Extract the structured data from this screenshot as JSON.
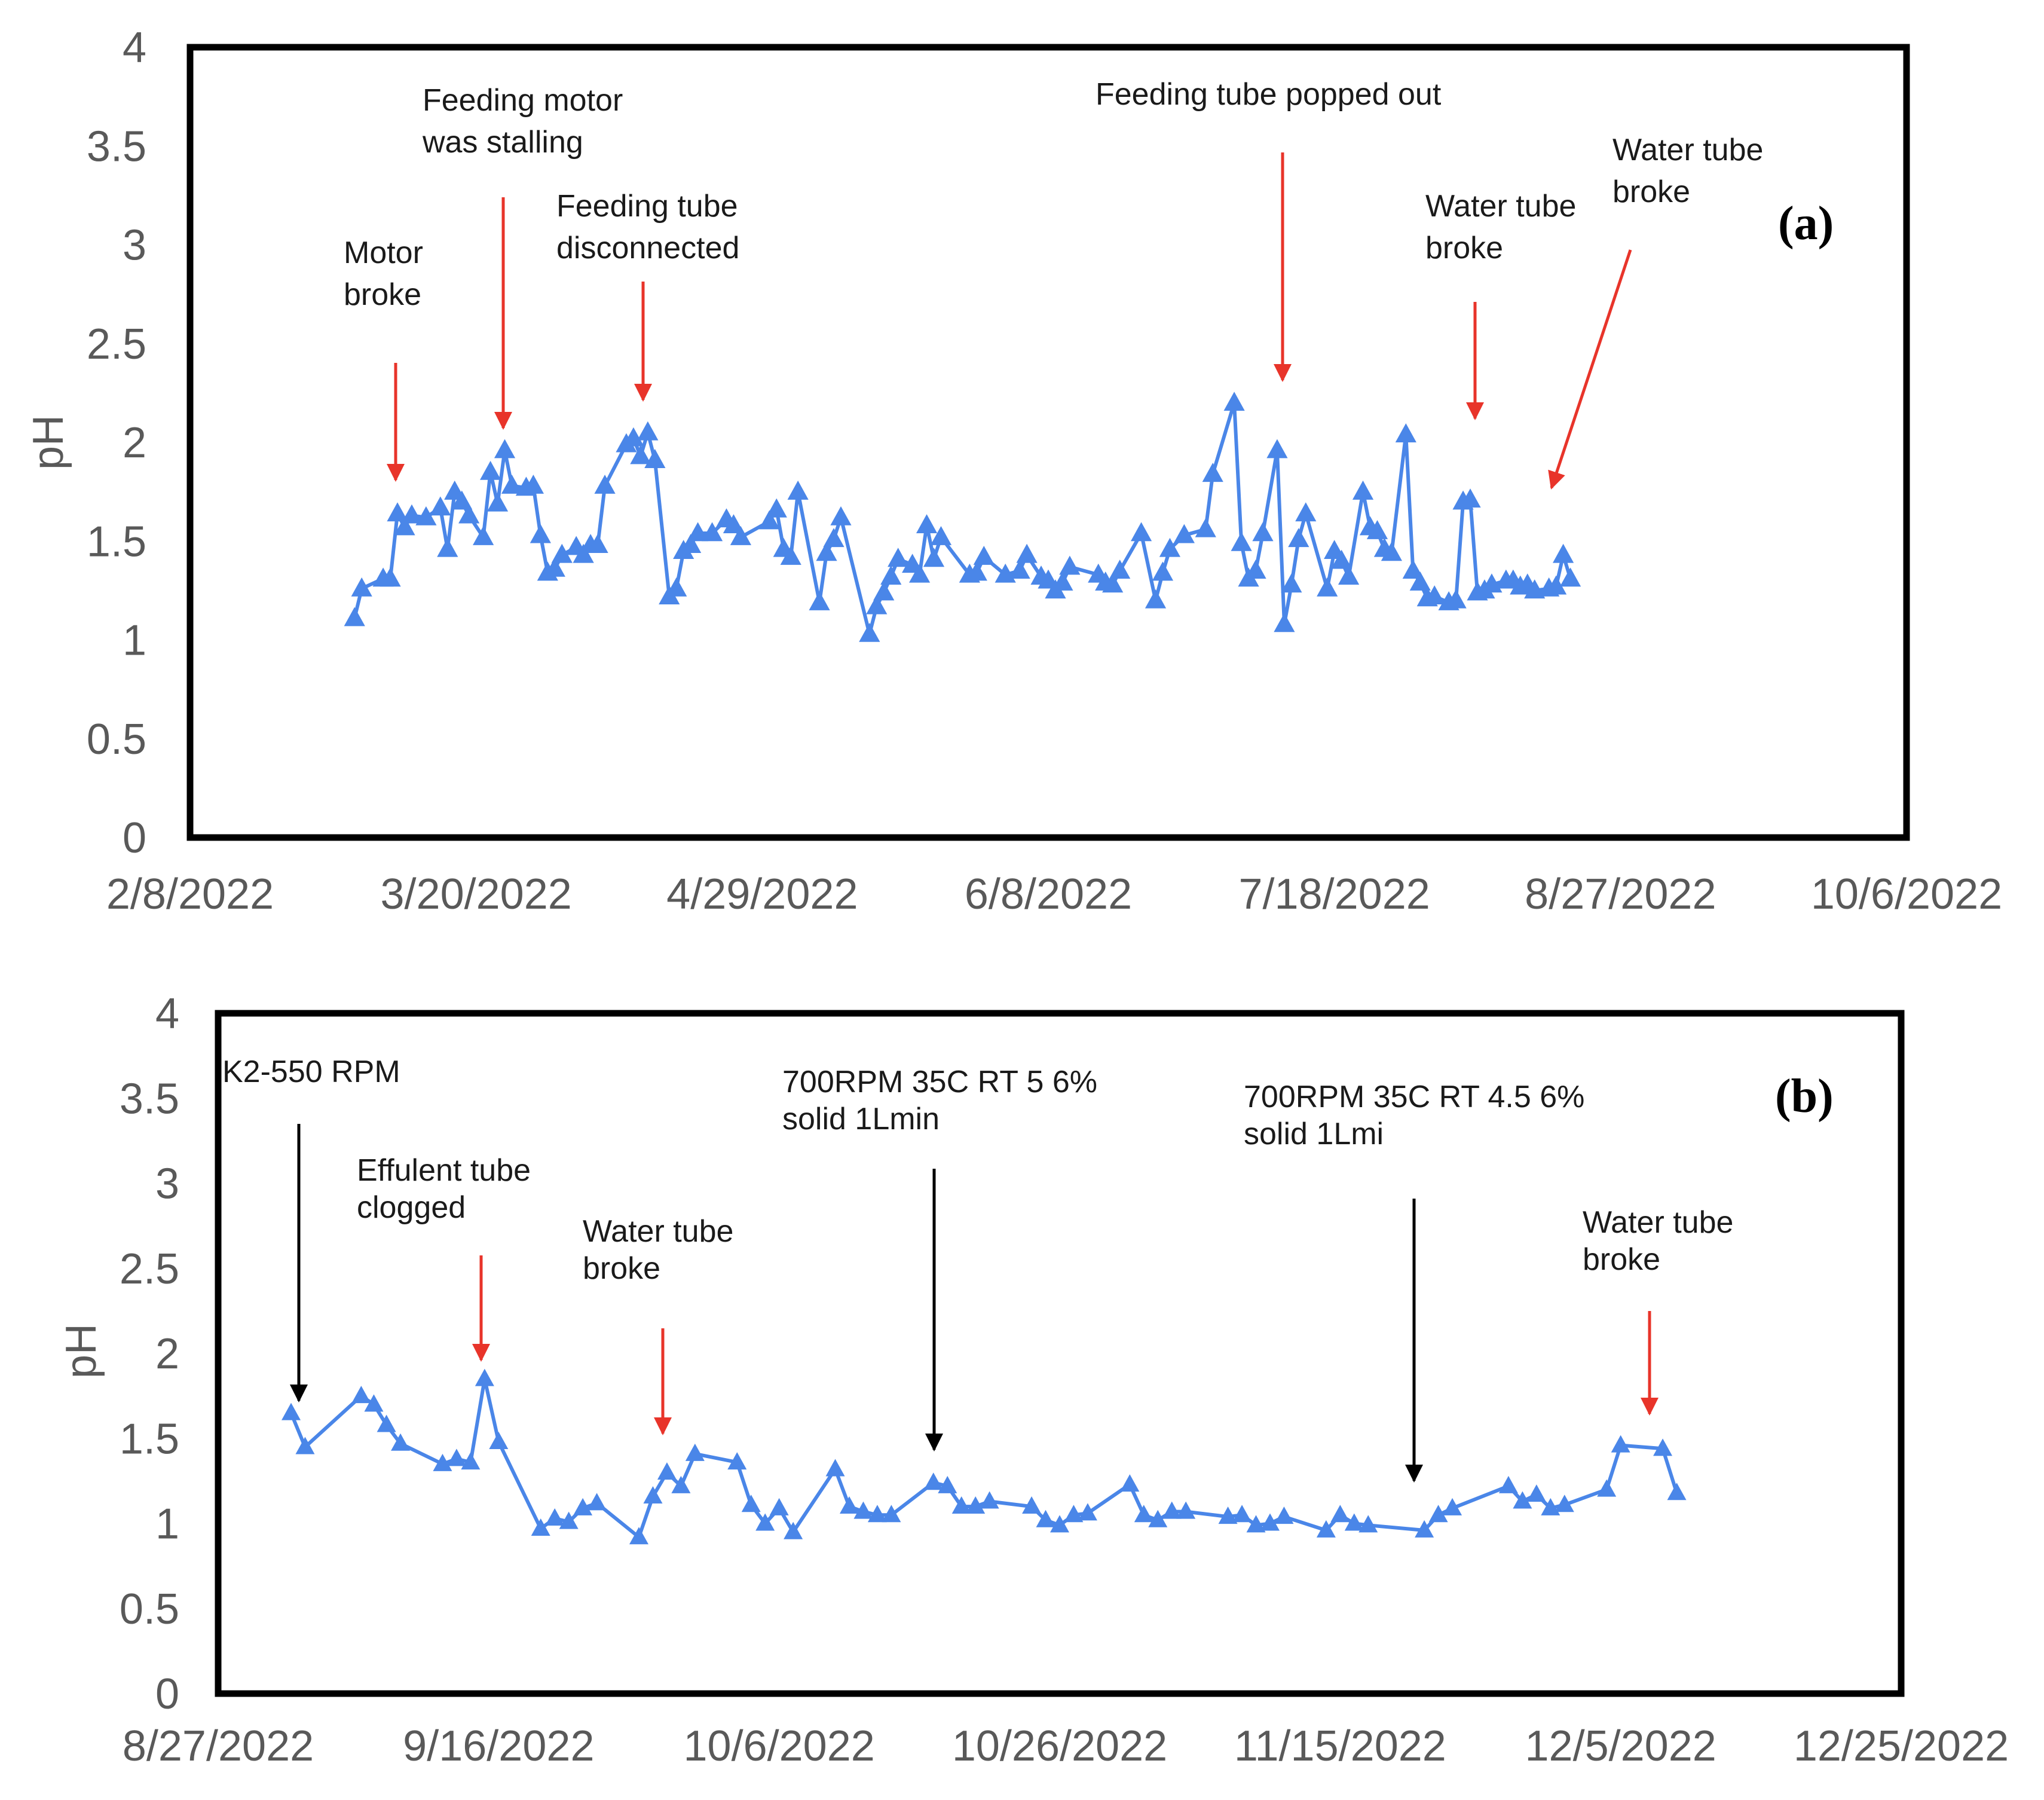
{
  "chart_data": [
    {
      "panel": "a",
      "type": "line",
      "panel_label": "(a)",
      "ylabel": "pH",
      "ylim": [
        0,
        4
      ],
      "yticks": [
        "0",
        "0.5",
        "1",
        "1.5",
        "2",
        "2.5",
        "3",
        "3.5",
        "4"
      ],
      "xlim": [
        0,
        240
      ],
      "xticks": [
        {
          "label": "2/8/2022",
          "day": 0
        },
        {
          "label": "3/20/2022",
          "day": 40
        },
        {
          "label": "4/29/2022",
          "day": 80
        },
        {
          "label": "6/8/2022",
          "day": 120
        },
        {
          "label": "7/18/2022",
          "day": 160
        },
        {
          "label": "8/27/2022",
          "day": 200
        },
        {
          "label": "10/6/2022",
          "day": 240
        }
      ],
      "series": [
        {
          "name": "pH",
          "color": "#4a86e8",
          "points": [
            [
              23,
              1.11
            ],
            [
              24,
              1.26
            ],
            [
              27,
              1.31
            ],
            [
              28,
              1.31
            ],
            [
              29,
              1.64
            ],
            [
              30,
              1.57
            ],
            [
              31,
              1.63
            ],
            [
              33,
              1.62
            ],
            [
              35,
              1.67
            ],
            [
              36,
              1.46
            ],
            [
              37,
              1.75
            ],
            [
              38,
              1.7
            ],
            [
              39,
              1.63
            ],
            [
              41,
              1.52
            ],
            [
              42,
              1.85
            ],
            [
              43,
              1.69
            ],
            [
              44,
              1.96
            ],
            [
              45,
              1.78
            ],
            [
              47,
              1.77
            ],
            [
              48,
              1.78
            ],
            [
              49,
              1.53
            ],
            [
              50,
              1.34
            ],
            [
              51,
              1.36
            ],
            [
              52,
              1.43
            ],
            [
              54,
              1.47
            ],
            [
              55,
              1.43
            ],
            [
              56,
              1.48
            ],
            [
              57,
              1.48
            ],
            [
              58,
              1.78
            ],
            [
              61,
              1.99
            ],
            [
              62,
              2.02
            ],
            [
              63,
              1.93
            ],
            [
              64,
              2.05
            ],
            [
              65,
              1.91
            ],
            [
              67,
              1.22
            ],
            [
              68,
              1.26
            ],
            [
              69,
              1.45
            ],
            [
              70,
              1.48
            ],
            [
              71,
              1.54
            ],
            [
              73,
              1.54
            ],
            [
              75,
              1.61
            ],
            [
              76,
              1.58
            ],
            [
              77,
              1.52
            ],
            [
              81,
              1.6
            ],
            [
              82,
              1.66
            ],
            [
              83,
              1.46
            ],
            [
              84,
              1.42
            ],
            [
              85,
              1.75
            ],
            [
              88,
              1.19
            ],
            [
              89,
              1.44
            ],
            [
              90,
              1.51
            ],
            [
              91,
              1.62
            ],
            [
              95,
              1.03
            ],
            [
              96,
              1.17
            ],
            [
              97,
              1.24
            ],
            [
              98,
              1.32
            ],
            [
              99,
              1.41
            ],
            [
              101,
              1.38
            ],
            [
              102,
              1.33
            ],
            [
              103,
              1.58
            ],
            [
              104,
              1.41
            ],
            [
              105,
              1.52
            ],
            [
              109,
              1.33
            ],
            [
              110,
              1.34
            ],
            [
              111,
              1.42
            ],
            [
              114,
              1.33
            ],
            [
              116,
              1.35
            ],
            [
              117,
              1.43
            ],
            [
              119,
              1.32
            ],
            [
              120,
              1.3
            ],
            [
              121,
              1.25
            ],
            [
              122,
              1.29
            ],
            [
              123,
              1.37
            ],
            [
              127,
              1.33
            ],
            [
              128,
              1.29
            ],
            [
              129,
              1.28
            ],
            [
              130,
              1.35
            ],
            [
              133,
              1.54
            ],
            [
              135,
              1.2
            ],
            [
              136,
              1.34
            ],
            [
              137,
              1.46
            ],
            [
              139,
              1.53
            ],
            [
              142,
              1.56
            ],
            [
              143,
              1.84
            ],
            [
              146,
              2.2
            ],
            [
              147,
              1.49
            ],
            [
              148,
              1.31
            ],
            [
              149,
              1.35
            ],
            [
              150,
              1.54
            ],
            [
              152,
              1.96
            ],
            [
              153,
              1.08
            ],
            [
              154,
              1.28
            ],
            [
              155,
              1.51
            ],
            [
              156,
              1.64
            ],
            [
              159,
              1.26
            ],
            [
              160,
              1.45
            ],
            [
              161,
              1.4
            ],
            [
              162,
              1.32
            ],
            [
              164,
              1.75
            ],
            [
              165,
              1.57
            ],
            [
              166,
              1.55
            ],
            [
              167,
              1.46
            ],
            [
              168,
              1.44
            ],
            [
              170,
              2.04
            ],
            [
              171,
              1.35
            ],
            [
              172,
              1.29
            ],
            [
              173,
              1.21
            ],
            [
              174,
              1.22
            ],
            [
              176,
              1.19
            ],
            [
              177,
              1.2
            ],
            [
              178,
              1.7
            ],
            [
              179,
              1.71
            ],
            [
              180,
              1.24
            ],
            [
              181,
              1.25
            ],
            [
              182,
              1.28
            ],
            [
              184,
              1.3
            ],
            [
              185,
              1.3
            ],
            [
              186,
              1.27
            ],
            [
              187,
              1.28
            ],
            [
              188,
              1.25
            ],
            [
              190,
              1.26
            ],
            [
              191,
              1.27
            ],
            [
              192,
              1.43
            ],
            [
              193,
              1.31
            ]
          ]
        }
      ],
      "annotations": [
        {
          "lines": [
            "Motor",
            "broke"
          ],
          "arrow_color": "red"
        },
        {
          "lines": [
            "Feeding motor",
            "was stalling"
          ],
          "arrow_color": "red"
        },
        {
          "lines": [
            "Feeding tube",
            "disconnected"
          ],
          "arrow_color": "red"
        },
        {
          "lines": [
            "Feeding tube popped  out"
          ],
          "arrow_color": "red"
        },
        {
          "lines": [
            "Water tube",
            "broke"
          ],
          "arrow_color": "red"
        },
        {
          "lines": [
            "Water tube",
            "broke"
          ],
          "arrow_color": "red"
        }
      ]
    },
    {
      "panel": "b",
      "type": "line",
      "panel_label": "(b)",
      "ylabel": "pH",
      "ylim": [
        0,
        4
      ],
      "yticks": [
        "0",
        "0.5",
        "1",
        "1.5",
        "2",
        "2.5",
        "3",
        "3.5",
        "4"
      ],
      "xlim": [
        0,
        120
      ],
      "xticks": [
        {
          "label": "8/27/2022",
          "day": 0
        },
        {
          "label": "9/16/2022",
          "day": 20
        },
        {
          "label": "10/6/2022",
          "day": 40
        },
        {
          "label": "10/26/2022",
          "day": 60
        },
        {
          "label": "11/15/2022",
          "day": 80
        },
        {
          "label": "12/5/2022",
          "day": 100
        },
        {
          "label": "12/25/2022",
          "day": 120
        }
      ],
      "series": [
        {
          "name": "pH",
          "color": "#4a86e8",
          "points": [
            [
              5.2,
              1.65
            ],
            [
              6.2,
              1.45
            ],
            [
              10.2,
              1.75
            ],
            [
              11.1,
              1.7
            ],
            [
              12,
              1.58
            ],
            [
              13,
              1.47
            ],
            [
              16,
              1.35
            ],
            [
              17,
              1.38
            ],
            [
              18,
              1.36
            ],
            [
              19,
              1.85
            ],
            [
              20,
              1.48
            ],
            [
              23,
              0.97
            ],
            [
              24,
              1.03
            ],
            [
              25,
              1.01
            ],
            [
              26,
              1.09
            ],
            [
              27,
              1.12
            ],
            [
              30,
              0.92
            ],
            [
              31,
              1.16
            ],
            [
              32,
              1.3
            ],
            [
              33,
              1.22
            ],
            [
              34,
              1.41
            ],
            [
              37,
              1.36
            ],
            [
              38,
              1.11
            ],
            [
              39,
              1.0
            ],
            [
              40,
              1.09
            ],
            [
              41,
              0.95
            ],
            [
              44,
              1.32
            ],
            [
              45,
              1.1
            ],
            [
              46,
              1.07
            ],
            [
              47,
              1.05
            ],
            [
              48,
              1.05
            ],
            [
              51,
              1.24
            ],
            [
              52,
              1.22
            ],
            [
              53,
              1.1
            ],
            [
              54,
              1.1
            ],
            [
              55,
              1.13
            ],
            [
              58,
              1.1
            ],
            [
              59,
              1.02
            ],
            [
              60,
              0.99
            ],
            [
              61,
              1.05
            ],
            [
              62,
              1.06
            ],
            [
              65,
              1.23
            ],
            [
              66,
              1.05
            ],
            [
              67,
              1.02
            ],
            [
              68,
              1.07
            ],
            [
              69,
              1.07
            ],
            [
              72,
              1.04
            ],
            [
              73,
              1.05
            ],
            [
              74,
              0.99
            ],
            [
              75,
              1.0
            ],
            [
              76,
              1.04
            ],
            [
              79,
              0.96
            ],
            [
              80,
              1.05
            ],
            [
              81,
              1.0
            ],
            [
              82,
              0.99
            ],
            [
              86,
              0.96
            ],
            [
              87,
              1.05
            ],
            [
              88,
              1.09
            ],
            [
              92,
              1.22
            ],
            [
              93,
              1.13
            ],
            [
              94,
              1.17
            ],
            [
              95,
              1.09
            ],
            [
              96,
              1.11
            ],
            [
              99,
              1.2
            ],
            [
              100,
              1.46
            ],
            [
              103,
              1.44
            ],
            [
              104,
              1.18
            ]
          ]
        }
      ],
      "annotations": [
        {
          "lines": [
            "K2-550 RPM"
          ],
          "arrow_color": "black"
        },
        {
          "lines": [
            "Effulent tube",
            "clogged"
          ],
          "arrow_color": "red"
        },
        {
          "lines": [
            "Water tube",
            "broke"
          ],
          "arrow_color": "red"
        },
        {
          "lines": [
            "700RPM 35C RT 5 6%",
            "solid 1Lmin"
          ],
          "arrow_color": "black"
        },
        {
          "lines": [
            "700RPM 35C RT 4.5 6%",
            "solid 1Lmi"
          ],
          "arrow_color": "black"
        },
        {
          "lines": [
            "Water tube",
            "broke"
          ],
          "arrow_color": "red"
        }
      ]
    }
  ]
}
